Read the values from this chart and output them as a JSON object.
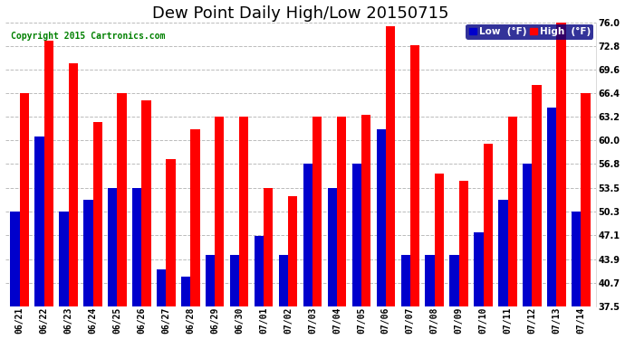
{
  "title": "Dew Point Daily High/Low 20150715",
  "copyright": "Copyright 2015 Cartronics.com",
  "categories": [
    "06/21",
    "06/22",
    "06/23",
    "06/24",
    "06/25",
    "06/26",
    "06/27",
    "06/28",
    "06/29",
    "06/30",
    "07/01",
    "07/02",
    "07/03",
    "07/04",
    "07/05",
    "07/06",
    "07/07",
    "07/08",
    "07/09",
    "07/10",
    "07/11",
    "07/12",
    "07/13",
    "07/14"
  ],
  "low_values": [
    50.3,
    60.5,
    50.3,
    52.0,
    53.5,
    53.5,
    42.5,
    41.5,
    44.5,
    44.5,
    47.0,
    44.5,
    56.8,
    53.5,
    56.8,
    61.5,
    44.5,
    44.5,
    44.5,
    47.5,
    52.0,
    56.8,
    64.5,
    50.3
  ],
  "high_values": [
    66.4,
    73.5,
    70.5,
    62.5,
    66.4,
    65.5,
    57.5,
    61.5,
    63.2,
    63.2,
    53.5,
    52.5,
    63.2,
    63.2,
    63.5,
    75.5,
    73.0,
    55.5,
    54.5,
    59.5,
    63.2,
    67.5,
    76.0,
    66.4
  ],
  "low_color": "#0000cc",
  "high_color": "#ff0000",
  "bg_color": "#ffffff",
  "grid_color": "#aaaaaa",
  "ylim_low": 37.5,
  "ylim_high": 76.0,
  "yticks": [
    37.5,
    40.7,
    43.9,
    47.1,
    50.3,
    53.5,
    56.8,
    60.0,
    63.2,
    66.4,
    69.6,
    72.8,
    76.0
  ],
  "legend_low_label": "Low  (°F)",
  "legend_high_label": "High  (°F)",
  "title_fontsize": 13,
  "copyright_fontsize": 7,
  "tick_fontsize": 7,
  "bar_width": 0.38
}
